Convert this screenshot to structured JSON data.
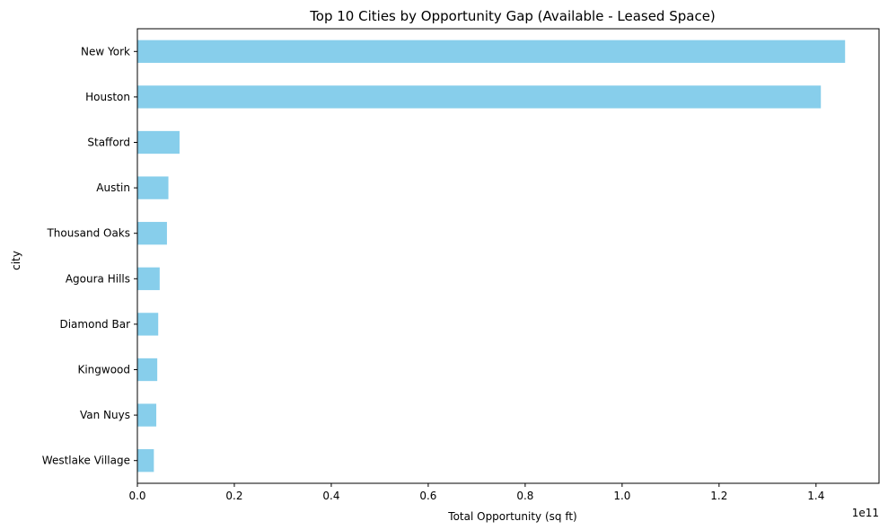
{
  "chart_data": {
    "type": "bar",
    "orientation": "horizontal",
    "title": "Top 10 Cities by Opportunity Gap (Available - Leased Space)",
    "xlabel": "Total Opportunity (sq ft)",
    "ylabel": "city",
    "x_offset_text": "1e11",
    "categories": [
      "New York",
      "Houston",
      "Stafford",
      "Austin",
      "Thousand Oaks",
      "Agoura Hills",
      "Diamond Bar",
      "Kingwood",
      "Van Nuys",
      "Westlake Village"
    ],
    "values": [
      146000000000,
      141000000000,
      8700000000,
      6400000000,
      6100000000,
      4600000000,
      4300000000,
      4100000000,
      3900000000,
      3400000000
    ],
    "xlim": [
      0,
      153000000000
    ],
    "xticks": [
      0,
      20000000000,
      40000000000,
      60000000000,
      80000000000,
      100000000000,
      120000000000,
      140000000000
    ],
    "xtick_labels": [
      "0.0",
      "0.2",
      "0.4",
      "0.6",
      "0.8",
      "1.0",
      "1.2",
      "1.4"
    ],
    "bar_color": "#87ceeb",
    "grid": false
  }
}
